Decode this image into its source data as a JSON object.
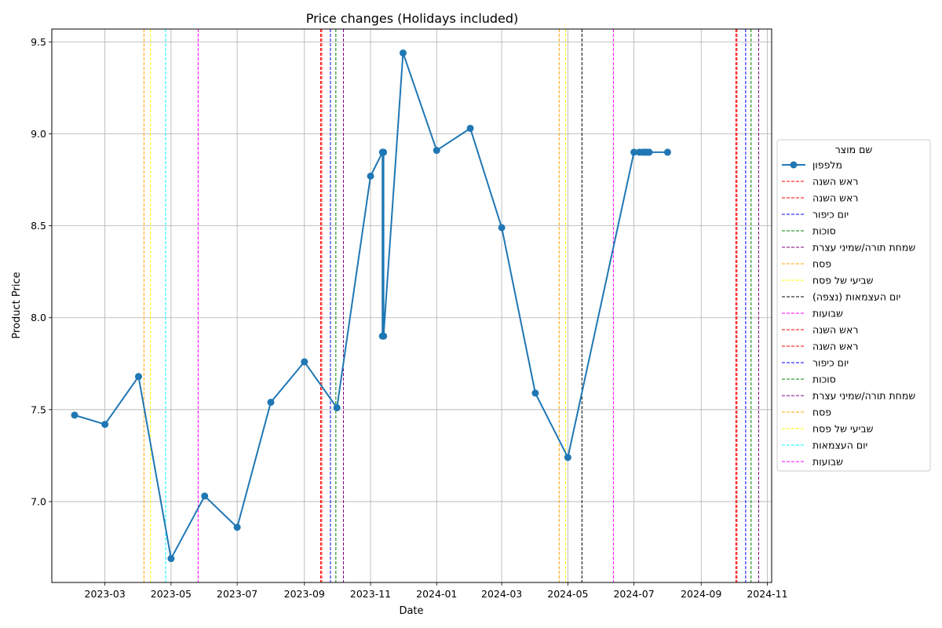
{
  "chart_data": {
    "type": "line",
    "title": "Price changes  (Holidays included)",
    "xlabel": "Date",
    "ylabel": "Product Price",
    "xlim": [
      "2023-01-11",
      "2024-11-05"
    ],
    "ylim": [
      6.56,
      9.57
    ],
    "grid": true,
    "legend_placement": "center-right outside",
    "x_ticks": [
      {
        "date": "2023-03-01",
        "label": "2023-03"
      },
      {
        "date": "2023-05-01",
        "label": "2023-05"
      },
      {
        "date": "2023-07-01",
        "label": "2023-07"
      },
      {
        "date": "2023-09-01",
        "label": "2023-09"
      },
      {
        "date": "2023-11-01",
        "label": "2023-11"
      },
      {
        "date": "2024-01-01",
        "label": "2024-01"
      },
      {
        "date": "2024-03-01",
        "label": "2024-03"
      },
      {
        "date": "2024-05-01",
        "label": "2024-05"
      },
      {
        "date": "2024-07-01",
        "label": "2024-07"
      },
      {
        "date": "2024-09-01",
        "label": "2024-09"
      },
      {
        "date": "2024-11-01",
        "label": "2024-11"
      }
    ],
    "y_ticks": [
      {
        "value": 7.0,
        "label": "7.0"
      },
      {
        "value": 7.5,
        "label": "7.5"
      },
      {
        "value": 8.0,
        "label": "8.0"
      },
      {
        "value": 8.5,
        "label": "8.5"
      },
      {
        "value": 9.0,
        "label": "9.0"
      },
      {
        "value": 9.5,
        "label": "9.5"
      }
    ],
    "series": [
      {
        "name": "מלפפון",
        "color": "#1f77b4",
        "points": [
          {
            "x": "2023-02-01",
            "y": 7.47
          },
          {
            "x": "2023-03-01",
            "y": 7.42
          },
          {
            "x": "2023-04-01",
            "y": 7.68
          },
          {
            "x": "2023-05-01",
            "y": 6.69
          },
          {
            "x": "2023-06-01",
            "y": 7.03
          },
          {
            "x": "2023-07-01",
            "y": 6.86
          },
          {
            "x": "2023-08-01",
            "y": 7.54
          },
          {
            "x": "2023-09-01",
            "y": 7.76
          },
          {
            "x": "2023-10-01",
            "y": 7.51
          },
          {
            "x": "2023-11-01",
            "y": 8.77
          },
          {
            "x": "2023-11-12",
            "y": 8.9
          },
          {
            "x": "2023-11-12",
            "y": 7.9
          },
          {
            "x": "2023-11-13",
            "y": 7.9
          },
          {
            "x": "2023-11-13",
            "y": 8.9
          },
          {
            "x": "2023-11-13",
            "y": 7.9
          },
          {
            "x": "2023-12-01",
            "y": 9.44
          },
          {
            "x": "2024-01-01",
            "y": 8.91
          },
          {
            "x": "2024-02-01",
            "y": 9.03
          },
          {
            "x": "2024-03-01",
            "y": 8.49
          },
          {
            "x": "2024-04-01",
            "y": 7.59
          },
          {
            "x": "2024-05-01",
            "y": 7.24
          },
          {
            "x": "2024-07-01",
            "y": 8.9
          },
          {
            "x": "2024-07-06",
            "y": 8.9
          },
          {
            "x": "2024-07-09",
            "y": 8.9
          },
          {
            "x": "2024-07-11",
            "y": 8.9
          },
          {
            "x": "2024-07-13",
            "y": 8.9
          },
          {
            "x": "2024-07-15",
            "y": 8.9
          },
          {
            "x": "2024-08-01",
            "y": 8.9
          }
        ]
      }
    ],
    "holidays": [
      {
        "name": "ראש השנה",
        "date": "2023-09-16",
        "color": "#ff0000"
      },
      {
        "name": "ראש השנה",
        "date": "2023-09-17",
        "color": "#ff0000"
      },
      {
        "name": "יום כיפור",
        "date": "2023-09-25",
        "color": "#0000ff"
      },
      {
        "name": "סוכות",
        "date": "2023-09-30",
        "color": "#008000"
      },
      {
        "name": "שמחת תורה/שמיני עצרת",
        "date": "2023-10-07",
        "color": "#800080"
      },
      {
        "name": "פסח",
        "date": "2023-04-06",
        "color": "#ffa500"
      },
      {
        "name": "שביעי של פסח",
        "date": "2023-04-12",
        "color": "#ffff00"
      },
      {
        "name": "יום העצמאות (נצפה)",
        "date": "2024-05-14",
        "color": "#000000"
      },
      {
        "name": "שבועות",
        "date": "2023-05-26",
        "color": "#ff00ff"
      },
      {
        "name": "ראש השנה",
        "date": "2024-10-03",
        "color": "#ff0000"
      },
      {
        "name": "ראש השנה",
        "date": "2024-10-04",
        "color": "#ff0000"
      },
      {
        "name": "יום כיפור",
        "date": "2024-10-12",
        "color": "#0000ff"
      },
      {
        "name": "סוכות",
        "date": "2024-10-17",
        "color": "#008000"
      },
      {
        "name": "שמחת תורה/שמיני עצרת",
        "date": "2024-10-24",
        "color": "#800080"
      },
      {
        "name": "פסח",
        "date": "2024-04-23",
        "color": "#ffa500"
      },
      {
        "name": "שביעי של פסח",
        "date": "2024-04-29",
        "color": "#ffff00"
      },
      {
        "name": "יום העצמאות",
        "date": "2023-04-26",
        "color": "#00ffff"
      },
      {
        "name": "שבועות",
        "date": "2024-06-12",
        "color": "#ff00ff"
      }
    ],
    "legend": {
      "title": "שם מוצר",
      "entries": [
        {
          "label": "מלפפון",
          "color": "#1f77b4",
          "style": "line-marker"
        },
        {
          "label": "ראש השנה",
          "color": "#ff0000",
          "style": "dashed"
        },
        {
          "label": "ראש השנה",
          "color": "#ff0000",
          "style": "dashed"
        },
        {
          "label": "יום כיפור",
          "color": "#0000ff",
          "style": "dashed"
        },
        {
          "label": "סוכות",
          "color": "#008000",
          "style": "dashed"
        },
        {
          "label": "שמחת תורה/שמיני עצרת",
          "color": "#800080",
          "style": "dashed"
        },
        {
          "label": "פסח",
          "color": "#ffa500",
          "style": "dashed"
        },
        {
          "label": "שביעי של פסח",
          "color": "#ffff00",
          "style": "dashed"
        },
        {
          "label": "יום העצמאות (נצפה)",
          "color": "#000000",
          "style": "dashed"
        },
        {
          "label": "שבועות",
          "color": "#ff00ff",
          "style": "dashed"
        },
        {
          "label": "ראש השנה",
          "color": "#ff0000",
          "style": "dashed"
        },
        {
          "label": "ראש השנה",
          "color": "#ff0000",
          "style": "dashed"
        },
        {
          "label": "יום כיפור",
          "color": "#0000ff",
          "style": "dashed"
        },
        {
          "label": "סוכות",
          "color": "#008000",
          "style": "dashed"
        },
        {
          "label": "שמחת תורה/שמיני עצרת",
          "color": "#800080",
          "style": "dashed"
        },
        {
          "label": "פסח",
          "color": "#ffa500",
          "style": "dashed"
        },
        {
          "label": "שביעי של פסח",
          "color": "#ffff00",
          "style": "dashed"
        },
        {
          "label": "יום העצמאות",
          "color": "#00ffff",
          "style": "dashed"
        },
        {
          "label": "שבועות",
          "color": "#ff00ff",
          "style": "dashed"
        }
      ]
    }
  }
}
